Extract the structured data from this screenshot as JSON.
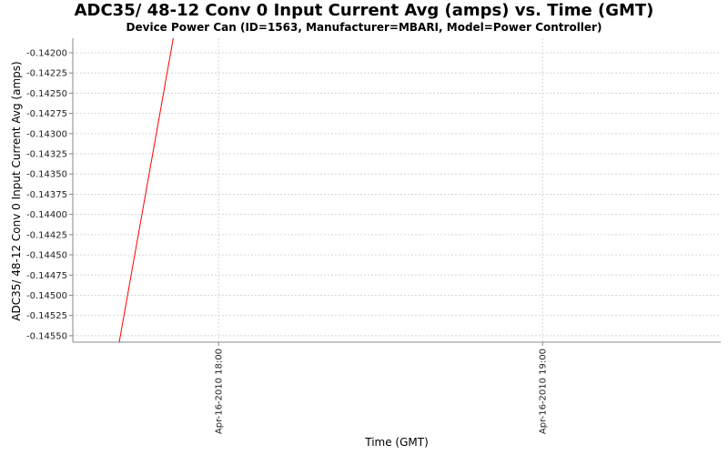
{
  "chart_data": {
    "type": "line",
    "title": "ADC35/ 48-12 Conv 0 Input Current Avg (amps) vs. Time (GMT)",
    "subtitle": "Device Power Can (ID=1563, Manufacturer=MBARI, Model=Power Controller)",
    "xlabel": "Time (GMT)",
    "ylabel": "ADC35/ 48-12 Conv 0 Input Current Avg (amps)",
    "ylim": [
      -0.14558,
      -0.14182
    ],
    "yticks": [
      -0.142,
      -0.14225,
      -0.1425,
      -0.14275,
      -0.143,
      -0.14325,
      -0.1435,
      -0.14375,
      -0.144,
      -0.14425,
      -0.1445,
      -0.14475,
      -0.145,
      -0.14525,
      -0.1455
    ],
    "ytick_labels": [
      "-0.14200",
      "-0.14225",
      "-0.14250",
      "-0.14275",
      "-0.14300",
      "-0.14325",
      "-0.14350",
      "-0.14375",
      "-0.14400",
      "-0.14425",
      "-0.14450",
      "-0.14475",
      "-0.14500",
      "-0.14525",
      "-0.14550"
    ],
    "xlim_minutes_from_start": [
      0,
      120
    ],
    "xticks": [
      {
        "label": "Apr-16-2010 18:00",
        "minutes": 27
      },
      {
        "label": "Apr-16-2010 19:00",
        "minutes": 87
      }
    ],
    "grid": true,
    "series": [
      {
        "color": "#ff0000",
        "points": [
          {
            "minutes": 8.6,
            "y": -0.14558
          },
          {
            "minutes": 18.6,
            "y": -0.14182
          }
        ]
      }
    ]
  }
}
